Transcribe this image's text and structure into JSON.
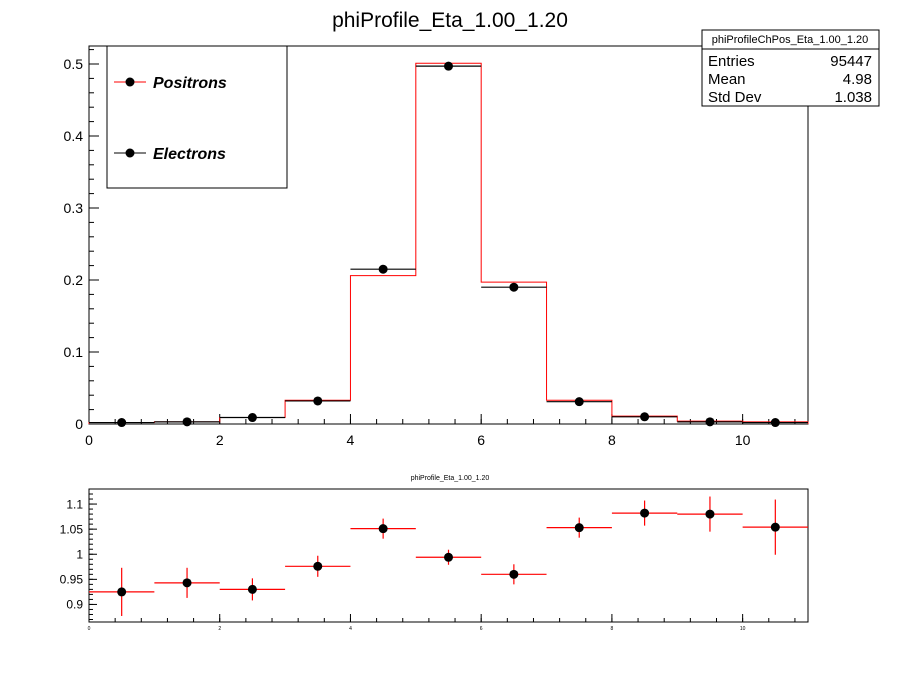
{
  "chart_data": [
    {
      "type": "histogram",
      "title": "phiProfile_Eta_1.00_1.20",
      "xlim": [
        0,
        11
      ],
      "ylim": [
        0,
        0.525
      ],
      "x_ticks": [
        0,
        2,
        4,
        6,
        8,
        10
      ],
      "y_ticks": [
        0,
        0.1,
        0.2,
        0.3,
        0.4,
        0.5
      ],
      "bin_edges": [
        0,
        1,
        2,
        3,
        4,
        5,
        6,
        7,
        8,
        9,
        10,
        11
      ],
      "legend": {
        "placement": "top-left",
        "entries": [
          "Positrons",
          "Electrons"
        ]
      },
      "series": [
        {
          "name": "Positrons",
          "style": "step",
          "color": "#ff0000",
          "values": [
            0.002,
            0.003,
            0.009,
            0.033,
            0.206,
            0.501,
            0.197,
            0.033,
            0.011,
            0.004,
            0.003
          ]
        },
        {
          "name": "Electrons",
          "style": "markers",
          "color": "#000000",
          "values": [
            0.002,
            0.003,
            0.009,
            0.032,
            0.215,
            0.497,
            0.19,
            0.031,
            0.01,
            0.003,
            0.002
          ]
        }
      ],
      "stats_box": {
        "title": "phiProfileChPos_Eta_1.00_1.20",
        "rows": [
          {
            "label": "Entries",
            "value": "95447"
          },
          {
            "label": "Mean",
            "value": "4.98"
          },
          {
            "label": "Std Dev",
            "value": "1.038"
          }
        ]
      }
    },
    {
      "type": "scatter",
      "title": "phiProfile_Eta_1.00_1.20",
      "xlim": [
        0,
        11
      ],
      "ylim": [
        0.865,
        1.13
      ],
      "x_ticks": [
        0,
        2,
        4,
        6,
        8,
        10
      ],
      "y_ticks": [
        0.9,
        0.95,
        1,
        1.05,
        1.1
      ],
      "y_tick_labels": [
        "0.9",
        "0.95",
        "1",
        "1.05",
        "1.1"
      ],
      "marker_color": "#000000",
      "error_color": "#ff0000",
      "points": [
        {
          "x": 0.5,
          "y": 0.925,
          "yerr": 0.048
        },
        {
          "x": 1.5,
          "y": 0.943,
          "yerr": 0.03
        },
        {
          "x": 2.5,
          "y": 0.93,
          "yerr": 0.022
        },
        {
          "x": 3.5,
          "y": 0.976,
          "yerr": 0.021
        },
        {
          "x": 4.5,
          "y": 1.051,
          "yerr": 0.02
        },
        {
          "x": 5.5,
          "y": 0.994,
          "yerr": 0.015
        },
        {
          "x": 6.5,
          "y": 0.96,
          "yerr": 0.02
        },
        {
          "x": 7.5,
          "y": 1.053,
          "yerr": 0.02
        },
        {
          "x": 8.5,
          "y": 1.082,
          "yerr": 0.025
        },
        {
          "x": 9.5,
          "y": 1.08,
          "yerr": 0.035
        },
        {
          "x": 10.5,
          "y": 1.054,
          "yerr": 0.055
        }
      ]
    }
  ]
}
